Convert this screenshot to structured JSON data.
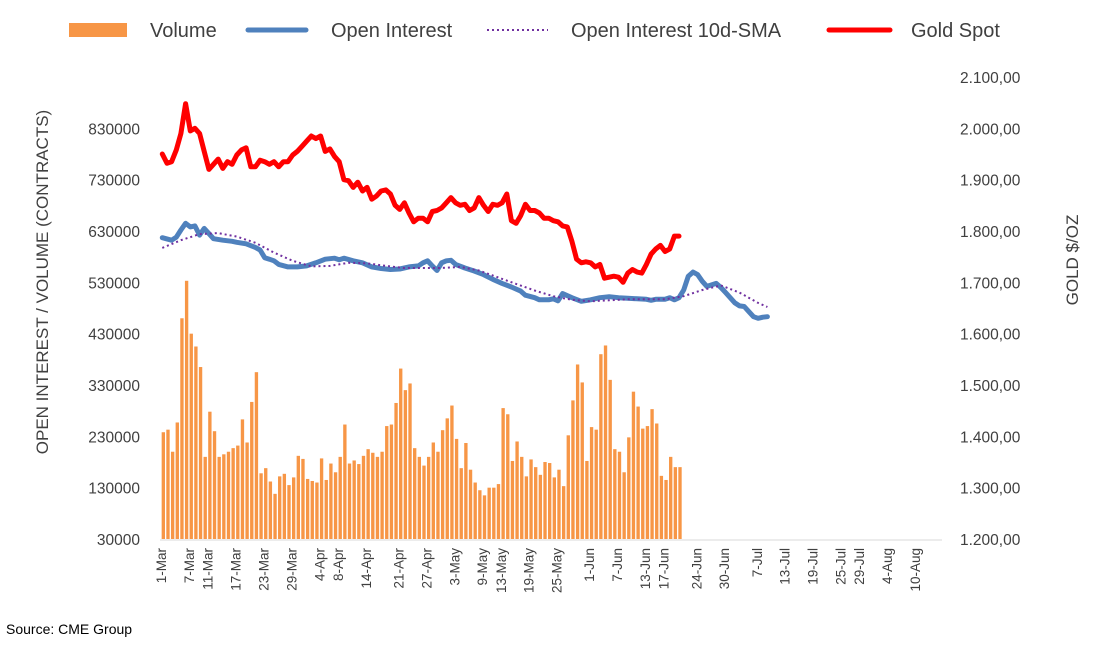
{
  "chart_data": {
    "type": "bar+line",
    "legend": [
      "Volume",
      "Open Interest",
      "Open Interest 10d-SMA",
      "Gold Spot"
    ],
    "ylabel_left": "OPEN INTEREST / VOLUME (CONTRACTS)",
    "ylabel_right": "GOLD $/OZ",
    "left_ticks": [
      "830000",
      "730000",
      "630000",
      "530000",
      "430000",
      "330000",
      "230000",
      "130000",
      "30000"
    ],
    "right_ticks": [
      "2.100,00",
      "2.000,00",
      "1.900,00",
      "1.800,00",
      "1.700,00",
      "1.600,00",
      "1.500,00",
      "1.400,00",
      "1.300,00",
      "1.200,00"
    ],
    "ylim_left": [
      30000,
      930000
    ],
    "ylim_right": [
      1200,
      2100
    ],
    "x_tick_labels": [
      "1-Mar",
      "7-Mar",
      "11-Mar",
      "17-Mar",
      "23-Mar",
      "29-Mar",
      "4-Apr",
      "8-Apr",
      "14-Apr",
      "21-Apr",
      "27-Apr",
      "3-May",
      "9-May",
      "13-May",
      "19-May",
      "25-May",
      "1-Jun",
      "7-Jun",
      "13-Jun",
      "17-Jun",
      "24-Jun",
      "30-Jun",
      "7-Jul",
      "13-Jul",
      "19-Jul",
      "25-Jul",
      "29-Jul",
      "4-Aug",
      "10-Aug"
    ],
    "x_tick_days": [
      0,
      6,
      10,
      16,
      22,
      28,
      34,
      38,
      44,
      51,
      57,
      63,
      69,
      73,
      79,
      85,
      92,
      98,
      104,
      108,
      115,
      121,
      128,
      134,
      140,
      146,
      150,
      156,
      162
    ],
    "x_range_days": [
      0,
      168
    ],
    "colors": {
      "volume": "#F79646",
      "open_interest": "#4F81BD",
      "sma": "#7030A0",
      "gold": "#FF0000",
      "text": "#404040",
      "axis": "#D9D9D9"
    },
    "volume": [
      [
        0,
        238000
      ],
      [
        1,
        243000
      ],
      [
        2,
        200000
      ],
      [
        3,
        257000
      ],
      [
        4,
        460000
      ],
      [
        5,
        533000
      ],
      [
        6,
        430000
      ],
      [
        7,
        405000
      ],
      [
        8,
        365000
      ],
      [
        9,
        190000
      ],
      [
        10,
        278000
      ],
      [
        11,
        240000
      ],
      [
        12,
        190000
      ],
      [
        13,
        195000
      ],
      [
        14,
        200000
      ],
      [
        15,
        207000
      ],
      [
        16,
        212000
      ],
      [
        17,
        263000
      ],
      [
        18,
        218000
      ],
      [
        19,
        297000
      ],
      [
        20,
        355000
      ],
      [
        21,
        158000
      ],
      [
        22,
        168000
      ],
      [
        23,
        142000
      ],
      [
        24,
        118000
      ],
      [
        25,
        152000
      ],
      [
        26,
        157000
      ],
      [
        27,
        135000
      ],
      [
        28,
        150000
      ],
      [
        29,
        192000
      ],
      [
        30,
        186000
      ],
      [
        31,
        147000
      ],
      [
        32,
        143000
      ],
      [
        33,
        140000
      ],
      [
        34,
        187000
      ],
      [
        35,
        145000
      ],
      [
        36,
        177000
      ],
      [
        37,
        160000
      ],
      [
        38,
        190000
      ],
      [
        39,
        253000
      ],
      [
        40,
        177000
      ],
      [
        41,
        183000
      ],
      [
        42,
        176000
      ],
      [
        43,
        192000
      ],
      [
        44,
        205000
      ],
      [
        45,
        198000
      ],
      [
        46,
        190000
      ],
      [
        47,
        200000
      ],
      [
        48,
        250000
      ],
      [
        49,
        253000
      ],
      [
        50,
        295000
      ],
      [
        51,
        362000
      ],
      [
        52,
        320000
      ],
      [
        53,
        333000
      ],
      [
        54,
        207000
      ],
      [
        55,
        190000
      ],
      [
        56,
        173000
      ],
      [
        57,
        190000
      ],
      [
        58,
        218000
      ],
      [
        59,
        200000
      ],
      [
        60,
        242000
      ],
      [
        61,
        265000
      ],
      [
        62,
        290000
      ],
      [
        63,
        225000
      ],
      [
        64,
        168000
      ],
      [
        65,
        217000
      ],
      [
        66,
        165000
      ],
      [
        67,
        140000
      ],
      [
        68,
        125000
      ],
      [
        69,
        115000
      ],
      [
        70,
        130000
      ],
      [
        71,
        130000
      ],
      [
        72,
        137000
      ],
      [
        73,
        285000
      ],
      [
        74,
        273000
      ],
      [
        75,
        182000
      ],
      [
        76,
        220000
      ],
      [
        77,
        190000
      ],
      [
        78,
        152000
      ],
      [
        79,
        185000
      ],
      [
        80,
        170000
      ],
      [
        81,
        155000
      ],
      [
        82,
        180000
      ],
      [
        83,
        178000
      ],
      [
        84,
        150000
      ],
      [
        85,
        165000
      ],
      [
        86,
        133000
      ],
      [
        87,
        232000
      ],
      [
        88,
        300000
      ],
      [
        89,
        370000
      ],
      [
        90,
        335000
      ],
      [
        91,
        182000
      ],
      [
        92,
        248000
      ],
      [
        93,
        243000
      ],
      [
        94,
        390000
      ],
      [
        95,
        407000
      ],
      [
        96,
        340000
      ],
      [
        97,
        205000
      ],
      [
        98,
        200000
      ],
      [
        99,
        160000
      ],
      [
        100,
        228000
      ],
      [
        101,
        317000
      ],
      [
        102,
        288000
      ],
      [
        103,
        245000
      ],
      [
        104,
        250000
      ],
      [
        105,
        283000
      ],
      [
        106,
        255000
      ],
      [
        107,
        153000
      ],
      [
        108,
        145000
      ],
      [
        109,
        190000
      ],
      [
        110,
        170000
      ],
      [
        111,
        170000
      ]
    ],
    "open_interest": [
      [
        0,
        617000
      ],
      [
        2,
        612000
      ],
      [
        3,
        618000
      ],
      [
        4,
        632000
      ],
      [
        5,
        645000
      ],
      [
        6,
        638000
      ],
      [
        7,
        640000
      ],
      [
        8,
        622000
      ],
      [
        9,
        635000
      ],
      [
        10,
        625000
      ],
      [
        11,
        615000
      ],
      [
        13,
        612000
      ],
      [
        15,
        610000
      ],
      [
        16,
        608000
      ],
      [
        18,
        605000
      ],
      [
        20,
        598000
      ],
      [
        21,
        593000
      ],
      [
        22,
        578000
      ],
      [
        23,
        575000
      ],
      [
        24,
        572000
      ],
      [
        25,
        565000
      ],
      [
        27,
        560000
      ],
      [
        29,
        560000
      ],
      [
        31,
        562000
      ],
      [
        33,
        568000
      ],
      [
        35,
        575000
      ],
      [
        37,
        577000
      ],
      [
        38,
        574000
      ],
      [
        39,
        577000
      ],
      [
        41,
        572000
      ],
      [
        43,
        568000
      ],
      [
        45,
        560000
      ],
      [
        47,
        557000
      ],
      [
        49,
        555000
      ],
      [
        51,
        556000
      ],
      [
        53,
        560000
      ],
      [
        55,
        562000
      ],
      [
        56,
        568000
      ],
      [
        57,
        572000
      ],
      [
        58,
        562000
      ],
      [
        59,
        553000
      ],
      [
        60,
        568000
      ],
      [
        61,
        572000
      ],
      [
        62,
        573000
      ],
      [
        63,
        565000
      ],
      [
        65,
        558000
      ],
      [
        67,
        552000
      ],
      [
        69,
        545000
      ],
      [
        71,
        536000
      ],
      [
        73,
        528000
      ],
      [
        75,
        521000
      ],
      [
        77,
        513000
      ],
      [
        78,
        505000
      ],
      [
        80,
        500000
      ],
      [
        81,
        496000
      ],
      [
        83,
        496000
      ],
      [
        84,
        498000
      ],
      [
        85,
        494000
      ],
      [
        86,
        508000
      ],
      [
        88,
        500000
      ],
      [
        90,
        493000
      ],
      [
        92,
        496000
      ],
      [
        94,
        500000
      ],
      [
        96,
        502000
      ],
      [
        98,
        500000
      ],
      [
        100,
        499000
      ],
      [
        102,
        498000
      ],
      [
        104,
        497000
      ],
      [
        105,
        495000
      ],
      [
        106,
        497000
      ],
      [
        108,
        497000
      ],
      [
        109,
        500000
      ],
      [
        110,
        496000
      ],
      [
        111,
        500000
      ],
      [
        112,
        515000
      ],
      [
        113,
        542000
      ],
      [
        114,
        550000
      ],
      [
        115,
        545000
      ],
      [
        116,
        532000
      ],
      [
        117,
        522000
      ],
      [
        118,
        525000
      ],
      [
        119,
        528000
      ],
      [
        120,
        520000
      ],
      [
        121,
        510000
      ],
      [
        122,
        500000
      ],
      [
        123,
        490000
      ],
      [
        124,
        484000
      ],
      [
        125,
        483000
      ],
      [
        126,
        473000
      ],
      [
        127,
        463000
      ],
      [
        128,
        460000
      ],
      [
        129,
        462000
      ],
      [
        130,
        463000
      ]
    ],
    "sma": [
      [
        0,
        597000
      ],
      [
        4,
        612000
      ],
      [
        8,
        624000
      ],
      [
        12,
        626000
      ],
      [
        16,
        619000
      ],
      [
        20,
        607000
      ],
      [
        24,
        588000
      ],
      [
        28,
        572000
      ],
      [
        32,
        561000
      ],
      [
        36,
        562000
      ],
      [
        40,
        568000
      ],
      [
        44,
        567000
      ],
      [
        48,
        562000
      ],
      [
        52,
        558000
      ],
      [
        56,
        558000
      ],
      [
        60,
        558000
      ],
      [
        64,
        560000
      ],
      [
        68,
        553000
      ],
      [
        72,
        540000
      ],
      [
        76,
        527000
      ],
      [
        80,
        514000
      ],
      [
        84,
        503000
      ],
      [
        88,
        496000
      ],
      [
        92,
        493000
      ],
      [
        96,
        495000
      ],
      [
        100,
        497000
      ],
      [
        104,
        497000
      ],
      [
        108,
        497000
      ],
      [
        112,
        503000
      ],
      [
        116,
        515000
      ],
      [
        120,
        524000
      ],
      [
        124,
        510000
      ],
      [
        128,
        490000
      ],
      [
        130,
        482000
      ]
    ],
    "gold": [
      [
        0,
        1950
      ],
      [
        1,
        1932
      ],
      [
        2,
        1935
      ],
      [
        3,
        1958
      ],
      [
        4,
        1990
      ],
      [
        5,
        2048
      ],
      [
        6,
        1995
      ],
      [
        7,
        2000
      ],
      [
        8,
        1990
      ],
      [
        9,
        1955
      ],
      [
        10,
        1920
      ],
      [
        11,
        1930
      ],
      [
        12,
        1940
      ],
      [
        13,
        1922
      ],
      [
        14,
        1935
      ],
      [
        15,
        1930
      ],
      [
        16,
        1948
      ],
      [
        17,
        1958
      ],
      [
        18,
        1962
      ],
      [
        19,
        1925
      ],
      [
        20,
        1925
      ],
      [
        21,
        1938
      ],
      [
        22,
        1935
      ],
      [
        23,
        1930
      ],
      [
        24,
        1935
      ],
      [
        25,
        1925
      ],
      [
        26,
        1935
      ],
      [
        27,
        1935
      ],
      [
        28,
        1948
      ],
      [
        29,
        1955
      ],
      [
        30,
        1965
      ],
      [
        31,
        1975
      ],
      [
        32,
        1985
      ],
      [
        33,
        1980
      ],
      [
        34,
        1985
      ],
      [
        35,
        1955
      ],
      [
        36,
        1960
      ],
      [
        37,
        1945
      ],
      [
        38,
        1935
      ],
      [
        39,
        1900
      ],
      [
        40,
        1898
      ],
      [
        41,
        1885
      ],
      [
        42,
        1895
      ],
      [
        43,
        1878
      ],
      [
        44,
        1885
      ],
      [
        45,
        1862
      ],
      [
        46,
        1868
      ],
      [
        47,
        1878
      ],
      [
        48,
        1880
      ],
      [
        49,
        1872
      ],
      [
        50,
        1850
      ],
      [
        51,
        1842
      ],
      [
        52,
        1855
      ],
      [
        53,
        1835
      ],
      [
        54,
        1818
      ],
      [
        55,
        1825
      ],
      [
        56,
        1825
      ],
      [
        57,
        1818
      ],
      [
        58,
        1838
      ],
      [
        59,
        1840
      ],
      [
        60,
        1845
      ],
      [
        61,
        1855
      ],
      [
        62,
        1865
      ],
      [
        63,
        1855
      ],
      [
        64,
        1850
      ],
      [
        65,
        1852
      ],
      [
        66,
        1840
      ],
      [
        67,
        1845
      ],
      [
        68,
        1865
      ],
      [
        69,
        1850
      ],
      [
        70,
        1838
      ],
      [
        71,
        1852
      ],
      [
        72,
        1850
      ],
      [
        73,
        1855
      ],
      [
        74,
        1872
      ],
      [
        75,
        1820
      ],
      [
        76,
        1815
      ],
      [
        77,
        1830
      ],
      [
        78,
        1852
      ],
      [
        79,
        1840
      ],
      [
        80,
        1840
      ],
      [
        81,
        1835
      ],
      [
        82,
        1825
      ],
      [
        83,
        1825
      ],
      [
        84,
        1820
      ],
      [
        85,
        1818
      ],
      [
        86,
        1810
      ],
      [
        87,
        1808
      ],
      [
        88,
        1780
      ],
      [
        89,
        1745
      ],
      [
        90,
        1738
      ],
      [
        91,
        1740
      ],
      [
        92,
        1738
      ],
      [
        93,
        1730
      ],
      [
        94,
        1735
      ],
      [
        95,
        1708
      ],
      [
        96,
        1710
      ],
      [
        97,
        1712
      ],
      [
        98,
        1710
      ],
      [
        99,
        1700
      ],
      [
        100,
        1718
      ],
      [
        101,
        1725
      ],
      [
        102,
        1720
      ],
      [
        103,
        1718
      ],
      [
        104,
        1735
      ],
      [
        105,
        1755
      ],
      [
        106,
        1765
      ],
      [
        107,
        1772
      ],
      [
        108,
        1760
      ],
      [
        109,
        1765
      ],
      [
        110,
        1790
      ],
      [
        111,
        1790
      ]
    ]
  },
  "source": "Source: CME Group"
}
